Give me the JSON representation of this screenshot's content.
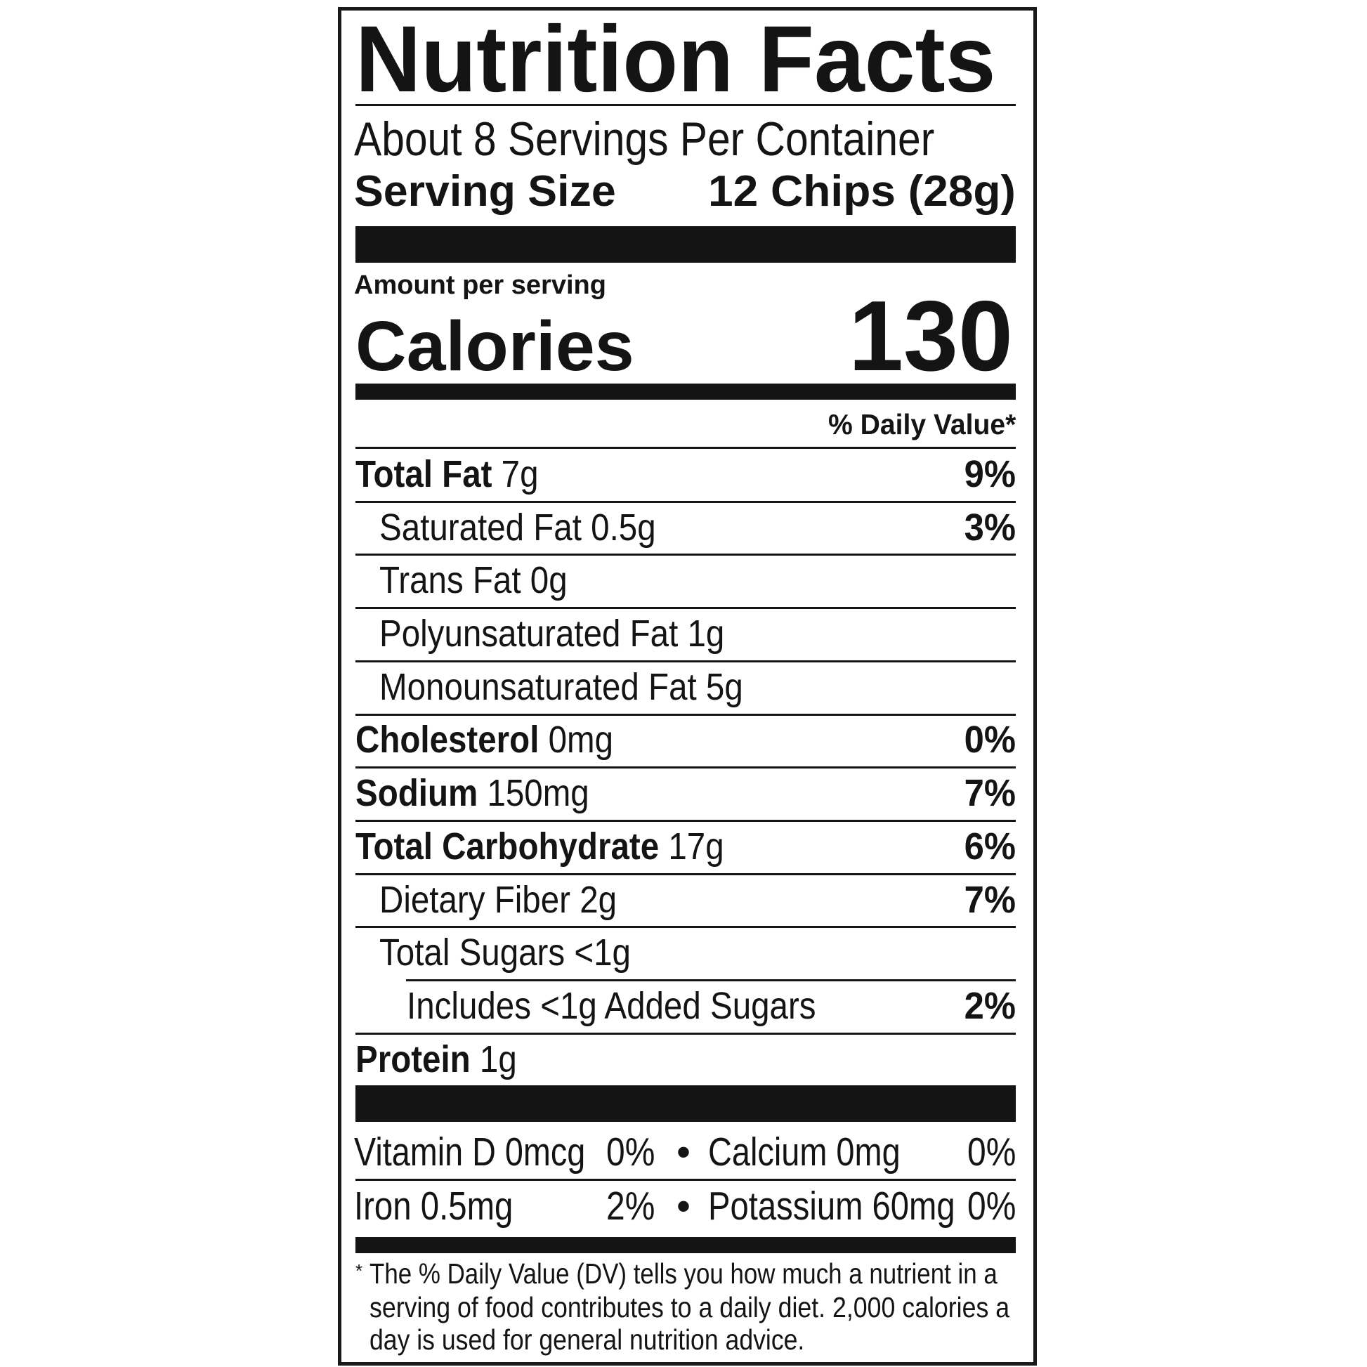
{
  "label": {
    "title": "Nutrition Facts",
    "servings_per_container": "About 8 Servings Per Container",
    "serving_size_label": "Serving Size",
    "serving_size_value": "12 Chips (28g)",
    "amount_per_serving": "Amount per serving",
    "calories_label": "Calories",
    "calories_value": "130",
    "daily_value_header": "% Daily Value*",
    "rows": [
      {
        "label": "Total Fat",
        "amount": "7g",
        "dv": "9%",
        "bold": true,
        "indent": 0
      },
      {
        "label": "Saturated Fat",
        "amount": "0.5g",
        "dv": "3%",
        "bold": false,
        "indent": 1
      },
      {
        "label": "Trans Fat",
        "amount": "0g",
        "dv": "",
        "bold": false,
        "indent": 1
      },
      {
        "label": "Polyunsaturated Fat",
        "amount": "1g",
        "dv": "",
        "bold": false,
        "indent": 1
      },
      {
        "label": "Monounsaturated Fat",
        "amount": "5g",
        "dv": "",
        "bold": false,
        "indent": 1
      },
      {
        "label": "Cholesterol",
        "amount": "0mg",
        "dv": "0%",
        "bold": true,
        "indent": 0
      },
      {
        "label": "Sodium",
        "amount": "150mg",
        "dv": "7%",
        "bold": true,
        "indent": 0
      },
      {
        "label": "Total Carbohydrate",
        "amount": "17g",
        "dv": "6%",
        "bold": true,
        "indent": 0
      },
      {
        "label": "Dietary Fiber",
        "amount": "2g",
        "dv": "7%",
        "bold": false,
        "indent": 1
      },
      {
        "label": "Total Sugars",
        "amount": "<1g",
        "dv": "",
        "bold": false,
        "indent": 1
      },
      {
        "label": "Includes <1g Added Sugars",
        "amount": "",
        "dv": "2%",
        "bold": false,
        "indent": 2
      },
      {
        "label": "Protein",
        "amount": "1g",
        "dv": "",
        "bold": true,
        "indent": 0
      }
    ],
    "micronutrients": [
      {
        "left_name": "Vitamin D 0mcg",
        "left_dv": "0%",
        "right_name": "Calcium 0mg",
        "right_dv": "0%"
      },
      {
        "left_name": "Iron 0.5mg",
        "left_dv": "2%",
        "right_name": "Potassium 60mg",
        "right_dv": "0%"
      }
    ],
    "footnote_mark": "*",
    "footnote_lines": [
      "The % Daily Value (DV) tells you how much a nutrient in a",
      "serving of food contributes to a daily diet. 2,000 calories a",
      "day is used for general nutrition advice."
    ]
  }
}
